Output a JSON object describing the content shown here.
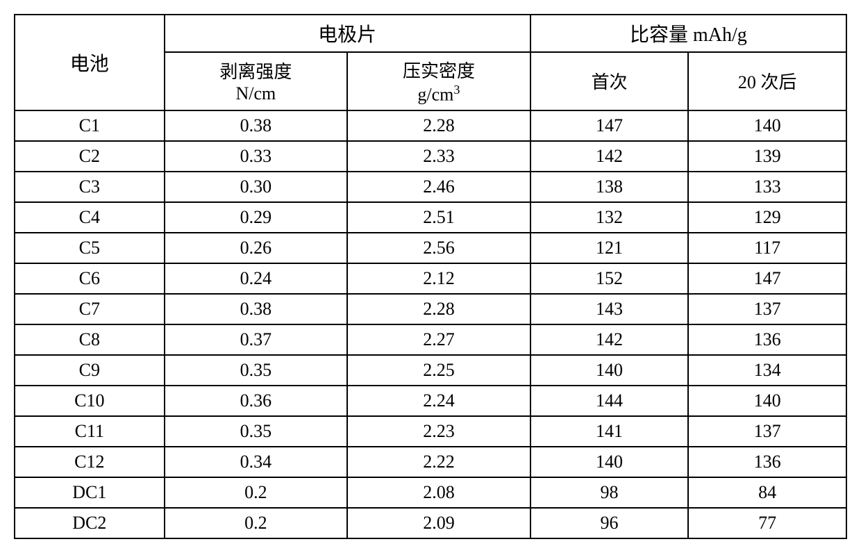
{
  "table": {
    "type": "table",
    "background_color": "#ffffff",
    "border_color": "#000000",
    "border_width": 2,
    "header_fontsize": 28,
    "subheader_fontsize": 26,
    "data_fontsize": 26,
    "font_family_cjk": "SimSun",
    "font_family_latin": "Times New Roman",
    "text_color": "#000000",
    "column_widths": [
      0.18,
      0.22,
      0.22,
      0.19,
      0.19
    ],
    "headers": {
      "battery": "电池",
      "electrode_group": "电极片",
      "capacity_group": "比容量 mAh/g",
      "peel_strength": "剥离强度",
      "peel_strength_unit": "N/cm",
      "compact_density": "压实密度",
      "compact_density_unit_prefix": "g/cm",
      "compact_density_unit_exponent": "3",
      "first_cycle": "首次",
      "after_20_cycles": "20 次后"
    },
    "rows": [
      {
        "battery": "C1",
        "peel_strength": "0.38",
        "compact_density": "2.28",
        "first": "147",
        "after20": "140"
      },
      {
        "battery": "C2",
        "peel_strength": "0.33",
        "compact_density": "2.33",
        "first": "142",
        "after20": "139"
      },
      {
        "battery": "C3",
        "peel_strength": "0.30",
        "compact_density": "2.46",
        "first": "138",
        "after20": "133"
      },
      {
        "battery": "C4",
        "peel_strength": "0.29",
        "compact_density": "2.51",
        "first": "132",
        "after20": "129"
      },
      {
        "battery": "C5",
        "peel_strength": "0.26",
        "compact_density": "2.56",
        "first": "121",
        "after20": "117"
      },
      {
        "battery": "C6",
        "peel_strength": "0.24",
        "compact_density": "2.12",
        "first": "152",
        "after20": "147"
      },
      {
        "battery": "C7",
        "peel_strength": "0.38",
        "compact_density": "2.28",
        "first": "143",
        "after20": "137"
      },
      {
        "battery": "C8",
        "peel_strength": "0.37",
        "compact_density": "2.27",
        "first": "142",
        "after20": "136"
      },
      {
        "battery": "C9",
        "peel_strength": "0.35",
        "compact_density": "2.25",
        "first": "140",
        "after20": "134"
      },
      {
        "battery": "C10",
        "peel_strength": "0.36",
        "compact_density": "2.24",
        "first": "144",
        "after20": "140"
      },
      {
        "battery": "C11",
        "peel_strength": "0.35",
        "compact_density": "2.23",
        "first": "141",
        "after20": "137"
      },
      {
        "battery": "C12",
        "peel_strength": "0.34",
        "compact_density": "2.22",
        "first": "140",
        "after20": "136"
      },
      {
        "battery": "DC1",
        "peel_strength": "0.2",
        "compact_density": "2.08",
        "first": "98",
        "after20": "84"
      },
      {
        "battery": "DC2",
        "peel_strength": "0.2",
        "compact_density": "2.09",
        "first": "96",
        "after20": "77"
      }
    ]
  }
}
